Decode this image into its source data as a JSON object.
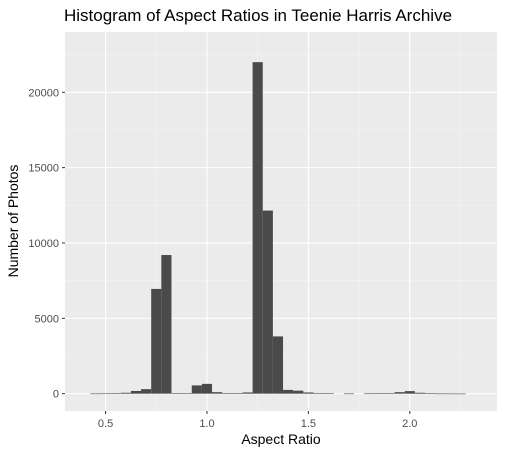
{
  "chart_data": {
    "type": "histogram",
    "title": "Histogram of Aspect Ratios in Teenie Harris Archive",
    "xlabel": "Aspect Ratio",
    "ylabel": "Number of Photos",
    "xlim": [
      0.3,
      2.43
    ],
    "ylim": [
      -1150,
      24000
    ],
    "bin_width": 0.05,
    "x_ticks": [
      0.5,
      1.0,
      1.5,
      2.0
    ],
    "x_tick_labels": [
      "0.5",
      "1.0",
      "1.5",
      "2.0"
    ],
    "y_ticks": [
      0,
      5000,
      10000,
      15000,
      20000
    ],
    "y_tick_labels": [
      "0",
      "5000",
      "10000",
      "15000",
      "20000"
    ],
    "grid": true,
    "bins": [
      {
        "x": 0.45,
        "count": 10
      },
      {
        "x": 0.5,
        "count": 15
      },
      {
        "x": 0.55,
        "count": 20
      },
      {
        "x": 0.6,
        "count": 60
      },
      {
        "x": 0.65,
        "count": 180
      },
      {
        "x": 0.7,
        "count": 300
      },
      {
        "x": 0.75,
        "count": 6950
      },
      {
        "x": 0.8,
        "count": 9200
      },
      {
        "x": 0.85,
        "count": 40
      },
      {
        "x": 0.9,
        "count": 30
      },
      {
        "x": 0.95,
        "count": 550
      },
      {
        "x": 1.0,
        "count": 650
      },
      {
        "x": 1.05,
        "count": 100
      },
      {
        "x": 1.1,
        "count": 20
      },
      {
        "x": 1.15,
        "count": 30
      },
      {
        "x": 1.2,
        "count": 80
      },
      {
        "x": 1.25,
        "count": 22000
      },
      {
        "x": 1.3,
        "count": 12150
      },
      {
        "x": 1.35,
        "count": 3800
      },
      {
        "x": 1.4,
        "count": 250
      },
      {
        "x": 1.45,
        "count": 200
      },
      {
        "x": 1.5,
        "count": 80
      },
      {
        "x": 1.55,
        "count": 40
      },
      {
        "x": 1.6,
        "count": 20
      },
      {
        "x": 1.7,
        "count": 10
      },
      {
        "x": 1.8,
        "count": 15
      },
      {
        "x": 1.85,
        "count": 20
      },
      {
        "x": 1.9,
        "count": 40
      },
      {
        "x": 1.95,
        "count": 100
      },
      {
        "x": 2.0,
        "count": 170
      },
      {
        "x": 2.05,
        "count": 60
      },
      {
        "x": 2.1,
        "count": 20
      },
      {
        "x": 2.15,
        "count": 10
      },
      {
        "x": 2.2,
        "count": 8
      },
      {
        "x": 2.25,
        "count": 5
      }
    ],
    "colors": {
      "panel": "#ebebeb",
      "grid_major": "#ffffff",
      "grid_minor": "#f4f4f4",
      "bar": "#4a4a4a",
      "tick": "#333333"
    }
  }
}
